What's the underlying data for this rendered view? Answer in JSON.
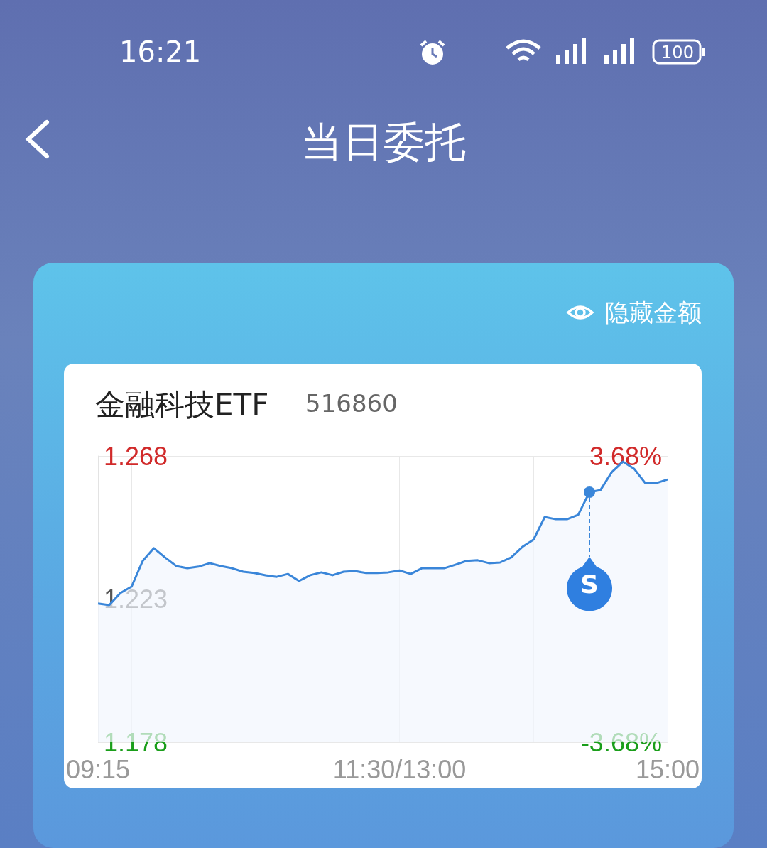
{
  "chart_data": {
    "type": "area",
    "title": "当日委托",
    "subtitle": "金融科技ETF",
    "annotations": [
      "16:21",
      "100",
      "隐藏金额",
      "516860",
      {
        "text": "S",
        "y": 1.2566
      }
    ],
    "categories": [
      "09:15",
      null,
      null,
      null,
      null,
      null,
      null,
      null,
      null,
      null,
      null,
      null,
      null,
      null,
      null,
      null,
      null,
      null,
      null,
      null,
      null,
      null,
      null,
      null,
      null,
      null,
      null,
      "11:30/13:00",
      null,
      null,
      null,
      null,
      null,
      null,
      null,
      null,
      null,
      null,
      null,
      null,
      null,
      null,
      null,
      null,
      null,
      null,
      null,
      null,
      null,
      null,
      null,
      "15:00"
    ],
    "series": [
      {
        "color": "#3a86d9",
        "values": [
          1.2216,
          1.2211,
          1.2249,
          1.2269,
          1.235,
          1.239,
          1.2361,
          1.2334,
          1.2327,
          1.2332,
          1.2343,
          1.2334,
          1.2327,
          1.2316,
          1.2312,
          1.2305,
          1.23,
          1.2309,
          1.2287,
          1.2305,
          1.2314,
          1.2305,
          1.2316,
          1.2318,
          1.2312,
          1.2312,
          1.2314,
          1.232,
          1.2309,
          1.2327,
          1.2327,
          1.2327,
          1.2338,
          1.235,
          1.2352,
          1.2343,
          1.2345,
          1.2361,
          1.2394,
          1.2417,
          1.2488,
          1.2481,
          1.2481,
          1.2495,
          1.2566,
          1.2573,
          1.2629,
          1.2662,
          1.264,
          1.2595,
          1.2595,
          1.2606
        ]
      }
    ],
    "ylim": [
      1.178,
      1.268
    ],
    "yticks": [
      1.178,
      1.223,
      1.268
    ],
    "y2lim": [
      -3.68,
      3.68
    ],
    "y2ticks": [
      {
        "value": -3.68,
        "label": "-3.68%"
      },
      {
        "value": 3.68,
        "label": "3.68%"
      }
    ],
    "grid": true,
    "marker": "none"
  }
}
